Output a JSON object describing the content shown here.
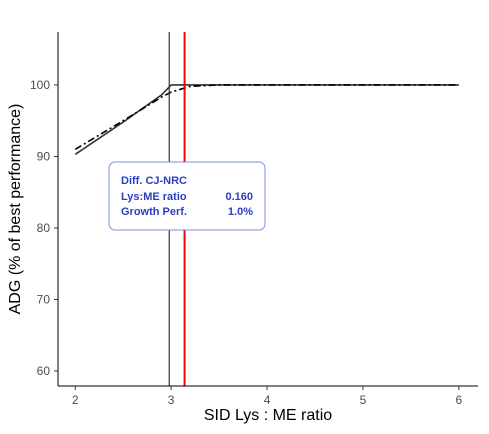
{
  "chart_data": {
    "type": "line",
    "title": "",
    "xlabel": "SID Lys : ME ratio",
    "ylabel": "ADG (% of best performance)",
    "xlim": [
      1.82,
      6.2
    ],
    "ylim": [
      57.9,
      107.4
    ],
    "x_ticks": [
      "2",
      "3",
      "4",
      "5",
      "6"
    ],
    "y_ticks": [
      "60",
      "70",
      "80",
      "90",
      "100"
    ],
    "grid": false,
    "series": [
      {
        "style": "solid",
        "color": "#333333",
        "x": [
          2.0,
          2.5,
          2.9,
          3.0,
          3.5,
          4.0,
          5.0,
          6.0
        ],
        "y": [
          90.3,
          94.8,
          98.6,
          100.0,
          100.0,
          100.0,
          100.0,
          100.0
        ]
      },
      {
        "style": "dashdot",
        "color": "#000000",
        "x": [
          2.0,
          2.5,
          2.9,
          3.0,
          3.1,
          3.2,
          3.5,
          4.0,
          5.0,
          6.0
        ],
        "y": [
          91.0,
          95.0,
          98.3,
          99.0,
          99.4,
          99.8,
          100.0,
          100.0,
          100.0,
          100.0
        ]
      }
    ],
    "vlines": [
      {
        "x": 2.98,
        "color": "#333333"
      },
      {
        "x": 3.14,
        "color": "#ff0000"
      }
    ],
    "annotation": {
      "title": "Diff. CJ-NRC",
      "rows": [
        {
          "label": "Lys:ME ratio",
          "value": "0.160"
        },
        {
          "label": "Growth Perf.",
          "value": "1.0%"
        }
      ],
      "color": "#2a3fc2",
      "border": "#7b8fe8",
      "position": "left-middle"
    }
  }
}
